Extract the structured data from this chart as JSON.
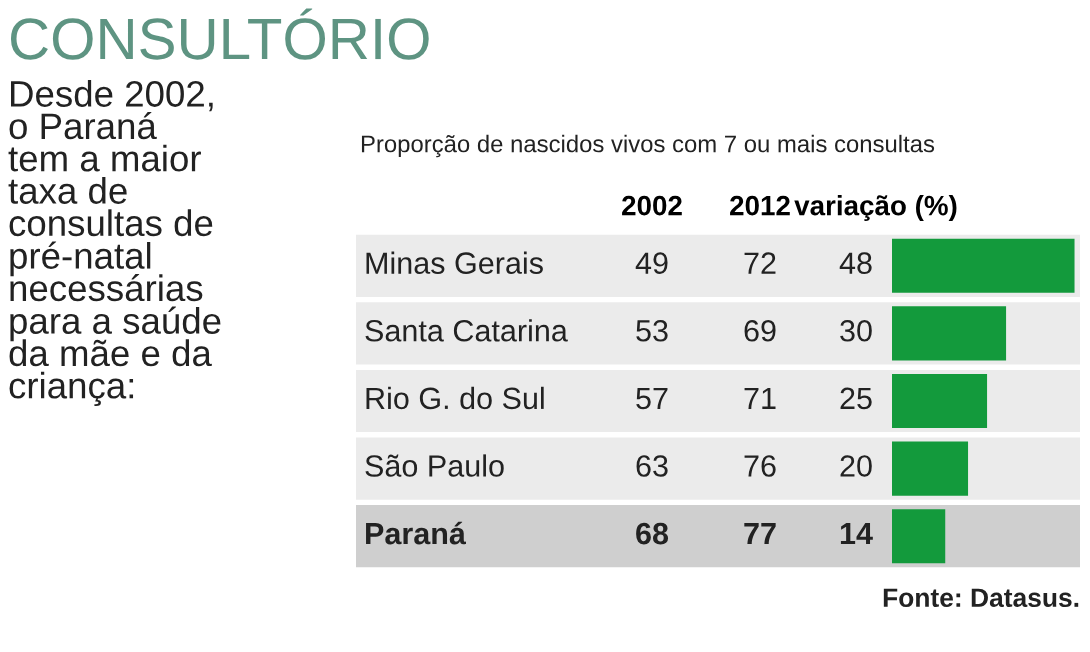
{
  "chart_data": {
    "type": "bar",
    "orientation": "horizontal",
    "title": "CONSULTÓRIO",
    "subtitle": "Desde 2002,\no Paraná\ntem a maior\ntaxa de\nconsultas de\npré-natal\nnecessárias\npara a saúde\nda mãe e da\ncriança:",
    "xlabel": "Proporção de nascidos vivos com 7 ou mais consultas",
    "categories": [
      "Minas Gerais",
      "Santa Catarina",
      "Rio G. do Sul",
      "São Paulo",
      "Paraná"
    ],
    "series": [
      {
        "name": "variação (%)",
        "color": "#139a3c",
        "values": [
          48,
          30,
          25,
          20,
          14
        ]
      }
    ],
    "data_labels": true,
    "annotations": [
      "Fonte: Datasus.",
      "2002",
      "49",
      "53",
      "57",
      "63",
      "68",
      "2012",
      "72",
      "69",
      "71",
      "76",
      "77"
    ]
  }
}
